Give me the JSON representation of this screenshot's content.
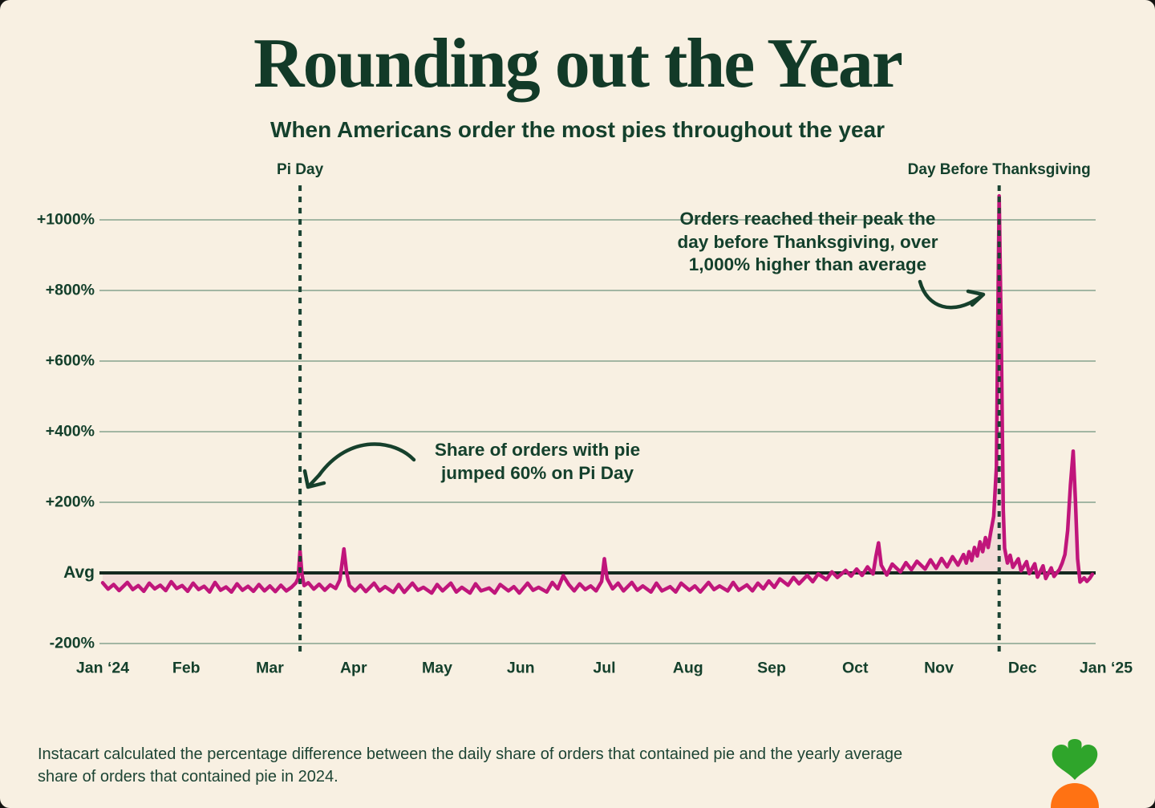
{
  "header": {
    "title": "Rounding out the Year",
    "subtitle": "When Americans order the most pies throughout the year"
  },
  "chart_data": {
    "type": "line",
    "title": "Rounding out the Year",
    "subtitle": "When Americans order the most pies throughout the year",
    "series_name": "Daily share of orders containing pie vs. yearly average (% difference)",
    "x_axis": {
      "labels": [
        "Jan ‘24",
        "Feb",
        "Mar",
        "Apr",
        "May",
        "Jun",
        "Jul",
        "Aug",
        "Sep",
        "Oct",
        "Nov",
        "Dec",
        "Jan ‘25"
      ],
      "unit": "month"
    },
    "y_axis": {
      "labels": [
        "+1000%",
        "+800%",
        "+600%",
        "+400%",
        "+200%",
        "Avg",
        "-200%"
      ],
      "values": [
        1000,
        800,
        600,
        400,
        200,
        0,
        -200
      ],
      "range": [
        -280,
        1120
      ],
      "gridlines": true,
      "baseline_label": "Avg"
    },
    "markers": [
      {
        "label": "Pi Day",
        "day": 72
      },
      {
        "label": "Day Before Thanksgiving",
        "day": 327
      }
    ],
    "key_facts": {
      "pi_day_jump_pct": 60,
      "thanksgiving_eve_peak_pct": 1070,
      "christmas_peak_pct": 345
    },
    "points": [
      [
        0,
        -28
      ],
      [
        2,
        -46
      ],
      [
        4,
        -33
      ],
      [
        6,
        -50
      ],
      [
        9,
        -27
      ],
      [
        11,
        -47
      ],
      [
        13,
        -36
      ],
      [
        15,
        -52
      ],
      [
        17,
        -29
      ],
      [
        19,
        -45
      ],
      [
        21,
        -35
      ],
      [
        23,
        -50
      ],
      [
        25,
        -25
      ],
      [
        27,
        -44
      ],
      [
        29,
        -36
      ],
      [
        31,
        -52
      ],
      [
        33,
        -29
      ],
      [
        35,
        -47
      ],
      [
        37,
        -38
      ],
      [
        39,
        -54
      ],
      [
        41,
        -27
      ],
      [
        43,
        -49
      ],
      [
        45,
        -40
      ],
      [
        47,
        -54
      ],
      [
        49,
        -31
      ],
      [
        51,
        -49
      ],
      [
        53,
        -38
      ],
      [
        55,
        -52
      ],
      [
        57,
        -33
      ],
      [
        59,
        -51
      ],
      [
        61,
        -37
      ],
      [
        63,
        -53
      ],
      [
        65,
        -35
      ],
      [
        67,
        -51
      ],
      [
        69,
        -40
      ],
      [
        70.5,
        -28
      ],
      [
        71.3,
        -15
      ],
      [
        72,
        62
      ],
      [
        72.7,
        -5
      ],
      [
        73.5,
        -36
      ],
      [
        75,
        -28
      ],
      [
        77,
        -46
      ],
      [
        79,
        -32
      ],
      [
        81,
        -49
      ],
      [
        83,
        -34
      ],
      [
        85,
        -44
      ],
      [
        86.5,
        -20
      ],
      [
        88,
        68
      ],
      [
        89,
        0
      ],
      [
        90,
        -36
      ],
      [
        92,
        -51
      ],
      [
        94,
        -35
      ],
      [
        96,
        -53
      ],
      [
        99,
        -29
      ],
      [
        101,
        -51
      ],
      [
        103,
        -39
      ],
      [
        106,
        -55
      ],
      [
        108,
        -33
      ],
      [
        110,
        -55
      ],
      [
        113,
        -29
      ],
      [
        115,
        -49
      ],
      [
        117,
        -41
      ],
      [
        120,
        -57
      ],
      [
        122,
        -33
      ],
      [
        124,
        -51
      ],
      [
        127,
        -29
      ],
      [
        129,
        -54
      ],
      [
        131,
        -41
      ],
      [
        134,
        -57
      ],
      [
        136,
        -31
      ],
      [
        138,
        -51
      ],
      [
        141,
        -43
      ],
      [
        143,
        -57
      ],
      [
        145,
        -33
      ],
      [
        148,
        -51
      ],
      [
        150,
        -39
      ],
      [
        152,
        -57
      ],
      [
        155,
        -29
      ],
      [
        157,
        -49
      ],
      [
        159,
        -41
      ],
      [
        162,
        -54
      ],
      [
        164,
        -27
      ],
      [
        166,
        -45
      ],
      [
        168,
        -8
      ],
      [
        170,
        -33
      ],
      [
        172,
        -51
      ],
      [
        174,
        -31
      ],
      [
        176,
        -47
      ],
      [
        178,
        -37
      ],
      [
        180,
        -51
      ],
      [
        182,
        -24
      ],
      [
        183,
        40
      ],
      [
        184,
        -16
      ],
      [
        186,
        -45
      ],
      [
        188,
        -29
      ],
      [
        190,
        -51
      ],
      [
        193,
        -27
      ],
      [
        195,
        -49
      ],
      [
        197,
        -37
      ],
      [
        200,
        -54
      ],
      [
        202,
        -29
      ],
      [
        204,
        -51
      ],
      [
        207,
        -39
      ],
      [
        209,
        -54
      ],
      [
        211,
        -29
      ],
      [
        214,
        -49
      ],
      [
        216,
        -37
      ],
      [
        218,
        -54
      ],
      [
        221,
        -27
      ],
      [
        223,
        -47
      ],
      [
        225,
        -37
      ],
      [
        228,
        -51
      ],
      [
        230,
        -27
      ],
      [
        232,
        -49
      ],
      [
        235,
        -34
      ],
      [
        237,
        -51
      ],
      [
        239,
        -29
      ],
      [
        241,
        -45
      ],
      [
        243,
        -23
      ],
      [
        245,
        -41
      ],
      [
        247,
        -17
      ],
      [
        250,
        -35
      ],
      [
        252,
        -13
      ],
      [
        254,
        -31
      ],
      [
        257,
        -7
      ],
      [
        259,
        -25
      ],
      [
        261,
        -3
      ],
      [
        264,
        -19
      ],
      [
        266,
        3
      ],
      [
        268,
        -13
      ],
      [
        271,
        7
      ],
      [
        273,
        -9
      ],
      [
        275,
        11
      ],
      [
        277,
        -7
      ],
      [
        279,
        17
      ],
      [
        281,
        -3
      ],
      [
        282,
        45
      ],
      [
        283,
        85
      ],
      [
        284,
        22
      ],
      [
        286,
        -6
      ],
      [
        288,
        25
      ],
      [
        291,
        3
      ],
      [
        293,
        29
      ],
      [
        295,
        9
      ],
      [
        297,
        33
      ],
      [
        300,
        11
      ],
      [
        302,
        37
      ],
      [
        304,
        13
      ],
      [
        306,
        41
      ],
      [
        308,
        17
      ],
      [
        310,
        46
      ],
      [
        312,
        22
      ],
      [
        314,
        52
      ],
      [
        315,
        28
      ],
      [
        316,
        60
      ],
      [
        317,
        35
      ],
      [
        318,
        72
      ],
      [
        319,
        48
      ],
      [
        320,
        88
      ],
      [
        321,
        60
      ],
      [
        322,
        100
      ],
      [
        323,
        72
      ],
      [
        324,
        118
      ],
      [
        325,
        160
      ],
      [
        326,
        300
      ],
      [
        326.5,
        700
      ],
      [
        327,
        1068
      ],
      [
        327.8,
        650
      ],
      [
        328.5,
        180
      ],
      [
        329,
        70
      ],
      [
        330,
        28
      ],
      [
        331,
        50
      ],
      [
        332,
        16
      ],
      [
        334,
        40
      ],
      [
        335,
        6
      ],
      [
        337,
        32
      ],
      [
        338,
        -2
      ],
      [
        340,
        26
      ],
      [
        341,
        -12
      ],
      [
        343,
        20
      ],
      [
        344,
        -16
      ],
      [
        346,
        14
      ],
      [
        347,
        -10
      ],
      [
        349,
        10
      ],
      [
        350,
        28
      ],
      [
        351,
        52
      ],
      [
        352,
        120
      ],
      [
        353,
        250
      ],
      [
        354,
        345
      ],
      [
        354.8,
        210
      ],
      [
        355.6,
        40
      ],
      [
        356.5,
        -26
      ],
      [
        358,
        -14
      ],
      [
        359,
        -24
      ],
      [
        360,
        -16
      ],
      [
        361,
        -4
      ]
    ],
    "style": {
      "line_color": "#C0157B",
      "fill_color": "rgba(192,21,123,0.09)",
      "gridline_color": "#A3B6A3",
      "baseline_color": "#15291F",
      "marker_line_color": "#1C4434",
      "text_color": "#14402C"
    }
  },
  "annotations": {
    "pi_day": {
      "line1": "Share of orders with pie",
      "line2_pre": "jumped ",
      "line2_bold": "60%",
      "line2_post": " on Pi Day"
    },
    "thanksgiving": {
      "line1": "Orders reached their peak the",
      "line2": "day before Thanksgiving, over",
      "line3_bold": "1,000%",
      "line3_post": " higher than average"
    }
  },
  "footer": {
    "text": "Instacart calculated the percentage difference between the daily share of orders that contained pie and the yearly average share of orders that contained pie in 2024."
  },
  "logo": {
    "name": "Instacart carrot logo",
    "leaf_color": "#2FA52B",
    "carrot_color": "#FF7213"
  }
}
